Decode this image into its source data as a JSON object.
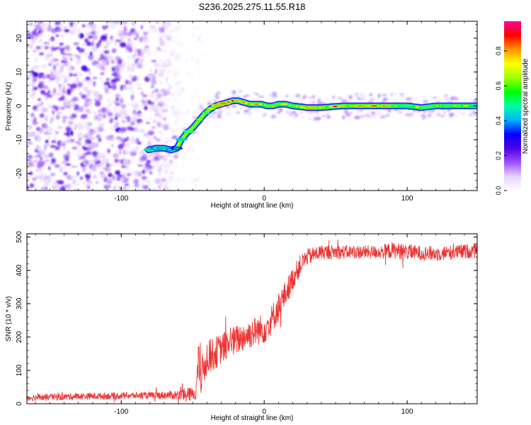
{
  "title": "S236.2025.275.11.55.R18",
  "chart_data": [
    {
      "type": "heatmap",
      "name": "spectrogram",
      "xlabel": "Height of straight line (km)",
      "ylabel": "Frequency (Hz)",
      "xlim": [
        -166,
        149
      ],
      "ylim": [
        -25,
        25
      ],
      "xticks": [
        -100,
        0,
        100
      ],
      "xtick_labels": [
        "-100",
        "0",
        "100"
      ],
      "yticks": [
        -20,
        -10,
        0,
        10,
        20
      ],
      "ytick_labels": [
        "-20",
        "-10",
        "0",
        "10",
        "20"
      ],
      "noise_region_x": [
        -166,
        -58
      ],
      "ridge": {
        "x": [
          -81,
          -76,
          -70,
          -65,
          -61,
          -58,
          -54,
          -50,
          -46,
          -42,
          -38,
          -34,
          -30,
          -26,
          -22,
          -18,
          -14,
          -10,
          -6,
          -2,
          2,
          6,
          10,
          15,
          20,
          30,
          40,
          55,
          70,
          80,
          90,
          100,
          110,
          120,
          130,
          149
        ],
        "freq": [
          -13,
          -12.5,
          -12.5,
          -13,
          -12.5,
          -10,
          -8,
          -6.5,
          -4.5,
          -2.5,
          -1,
          0,
          0.5,
          1,
          1.5,
          1.5,
          1,
          0.5,
          0.5,
          0.5,
          0,
          0,
          0.5,
          0.5,
          0,
          -0.5,
          -0.5,
          0,
          0,
          0,
          0,
          0,
          -0.5,
          0,
          0,
          0
        ],
        "peak": [
          0.55,
          0.6,
          0.6,
          0.55,
          0.5,
          0.55,
          0.6,
          0.65,
          0.7,
          0.75,
          0.8,
          0.9,
          0.9,
          0.95,
          0.95,
          0.95,
          0.9,
          0.85,
          0.85,
          0.8,
          0.8,
          0.8,
          0.75,
          0.75,
          0.85,
          0.85,
          0.8,
          0.9,
          0.9,
          0.85,
          0.8,
          0.75,
          0.7,
          0.7,
          0.75,
          0.7
        ]
      },
      "colorbar": {
        "label": "Normalized spectral amplitude",
        "range": [
          0,
          0.97
        ],
        "ticks": [
          0.0,
          0.2,
          0.4,
          0.6,
          0.8
        ],
        "tick_labels": [
          "0.0",
          "0.2",
          "0.4",
          "0.6",
          "0.8"
        ],
        "colors": [
          "#ffffff",
          "#e6d2ff",
          "#9a50ff",
          "#5000e6",
          "#0000ff",
          "#00b4ff",
          "#00ffa0",
          "#00ff00",
          "#a0ff00",
          "#ffff00",
          "#ff9600",
          "#ff0000",
          "#ff0096"
        ]
      }
    },
    {
      "type": "line",
      "name": "snr",
      "color": "#ee3333",
      "xlabel": "Height of straight line (km)",
      "ylabel": "SNR (10 * v/v)",
      "xlim": [
        -166,
        149
      ],
      "ylim": [
        0,
        510
      ],
      "xticks": [
        -100,
        0,
        100
      ],
      "xtick_labels": [
        "-100",
        "0",
        "100"
      ],
      "yticks": [
        0,
        100,
        200,
        300,
        400,
        500
      ],
      "ytick_labels": [
        "0",
        "100",
        "200",
        "300",
        "400",
        "500"
      ],
      "series": [
        {
          "name": "SNR",
          "x": [
            -166,
            -130,
            -100,
            -80,
            -65,
            -55,
            -48,
            -46,
            -44,
            -40,
            -35,
            -30,
            -25,
            -20,
            -15,
            -10,
            -5,
            0,
            5,
            10,
            15,
            20,
            25,
            30,
            40,
            60,
            80,
            90,
            100,
            120,
            149
          ],
          "y": [
            18,
            22,
            24,
            25,
            26,
            27,
            30,
            120,
            80,
            140,
            150,
            165,
            180,
            190,
            200,
            210,
            220,
            225,
            250,
            290,
            330,
            375,
            415,
            440,
            455,
            455,
            455,
            460,
            455,
            450,
            460
          ],
          "noise_amp": [
            10,
            10,
            10,
            10,
            12,
            20,
            20,
            60,
            60,
            50,
            50,
            45,
            45,
            45,
            45,
            45,
            45,
            45,
            45,
            45,
            40,
            35,
            30,
            25,
            22,
            20,
            20,
            25,
            22,
            22,
            22
          ]
        }
      ]
    }
  ]
}
